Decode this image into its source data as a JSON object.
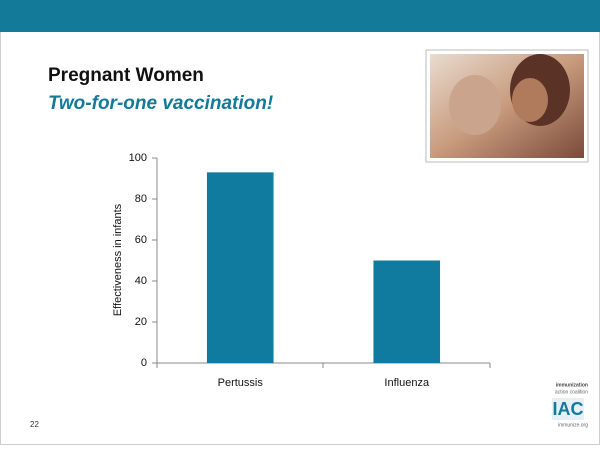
{
  "slide_number": "22",
  "logo": {
    "line1": "immunization",
    "line2": "action coalition",
    "mark": "IAC",
    "site": "immunize.org"
  },
  "chart_data": {
    "type": "bar",
    "title": "Pregnant Women",
    "subtitle": "Two-for-one vaccination!",
    "y_label": "Effectiveness in infants",
    "categories": [
      "Pertussis",
      "Influenza"
    ],
    "values": [
      93,
      50
    ],
    "color": "#117a9f",
    "ylim": [
      0,
      100
    ],
    "yticks": [
      0,
      20,
      40,
      60,
      80,
      100
    ],
    "grid": false
  }
}
